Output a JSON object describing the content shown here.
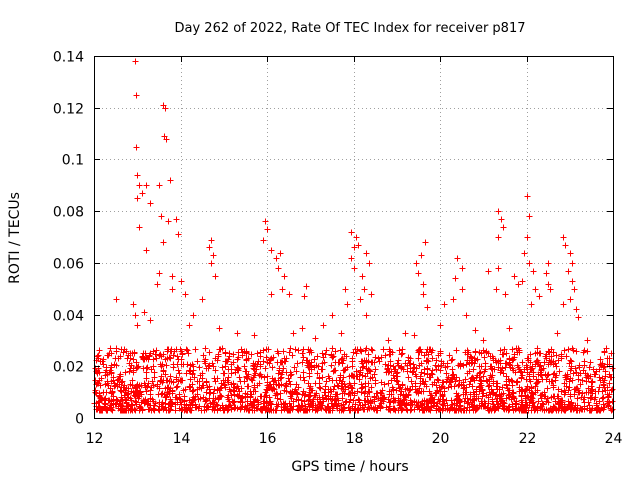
{
  "chart_data": {
    "type": "scatter",
    "title": "Day 262 of 2022, Rate Of TEC Index for receiver p817",
    "xlabel": "GPS time / hours",
    "ylabel": "ROTI / TECUs",
    "xlim": [
      12,
      24
    ],
    "ylim": [
      0,
      0.14
    ],
    "xticks": [
      12,
      14,
      16,
      18,
      20,
      22,
      24
    ],
    "yticks": [
      0,
      0.02,
      0.04,
      0.06,
      0.08,
      0.1,
      0.12,
      0.14
    ],
    "xtick_labels": [
      "12",
      "14",
      "16",
      "18",
      "20",
      "22",
      "24"
    ],
    "ytick_labels": [
      "0",
      "0.02",
      "0.04",
      "0.06",
      "0.08",
      "0.1",
      "0.12",
      "0.14"
    ],
    "grid": true,
    "marker": "+",
    "color": "#ff0000",
    "series": [
      {
        "name": "ROTI",
        "points": [
          [
            12.95,
            0.138
          ],
          [
            12.98,
            0.125
          ],
          [
            12.97,
            0.105
          ],
          [
            13.6,
            0.121
          ],
          [
            13.65,
            0.12
          ],
          [
            13.62,
            0.109
          ],
          [
            13.66,
            0.108
          ],
          [
            13.0,
            0.094
          ],
          [
            13.05,
            0.09
          ],
          [
            13.2,
            0.09
          ],
          [
            13.5,
            0.09
          ],
          [
            13.75,
            0.092
          ],
          [
            13.1,
            0.087
          ],
          [
            13.0,
            0.085
          ],
          [
            13.3,
            0.083
          ],
          [
            13.55,
            0.078
          ],
          [
            13.7,
            0.076
          ],
          [
            13.9,
            0.077
          ],
          [
            13.05,
            0.074
          ],
          [
            13.95,
            0.071
          ],
          [
            13.6,
            0.068
          ],
          [
            13.2,
            0.065
          ],
          [
            14.7,
            0.069
          ],
          [
            14.65,
            0.066
          ],
          [
            14.75,
            0.063
          ],
          [
            14.7,
            0.06
          ],
          [
            14.8,
            0.055
          ],
          [
            14.5,
            0.046
          ],
          [
            13.5,
            0.056
          ],
          [
            13.45,
            0.052
          ],
          [
            13.8,
            0.055
          ],
          [
            13.8,
            0.05
          ],
          [
            14.0,
            0.053
          ],
          [
            14.1,
            0.048
          ],
          [
            12.5,
            0.046
          ],
          [
            12.9,
            0.044
          ],
          [
            12.95,
            0.04
          ],
          [
            13.0,
            0.036
          ],
          [
            13.15,
            0.041
          ],
          [
            13.3,
            0.038
          ],
          [
            15.95,
            0.076
          ],
          [
            16.0,
            0.073
          ],
          [
            15.9,
            0.069
          ],
          [
            16.1,
            0.065
          ],
          [
            16.2,
            0.062
          ],
          [
            16.3,
            0.064
          ],
          [
            16.25,
            0.058
          ],
          [
            16.4,
            0.055
          ],
          [
            16.35,
            0.05
          ],
          [
            16.5,
            0.048
          ],
          [
            16.1,
            0.048
          ],
          [
            16.9,
            0.051
          ],
          [
            16.85,
            0.047
          ],
          [
            17.5,
            0.04
          ],
          [
            17.3,
            0.036
          ],
          [
            17.95,
            0.072
          ],
          [
            18.05,
            0.07
          ],
          [
            18.0,
            0.066
          ],
          [
            18.1,
            0.067
          ],
          [
            17.95,
            0.062
          ],
          [
            18.0,
            0.058
          ],
          [
            18.3,
            0.064
          ],
          [
            18.35,
            0.06
          ],
          [
            18.2,
            0.055
          ],
          [
            18.25,
            0.05
          ],
          [
            18.15,
            0.046
          ],
          [
            18.4,
            0.048
          ],
          [
            17.8,
            0.05
          ],
          [
            17.85,
            0.044
          ],
          [
            18.3,
            0.04
          ],
          [
            19.65,
            0.068
          ],
          [
            19.55,
            0.063
          ],
          [
            19.45,
            0.06
          ],
          [
            19.5,
            0.056
          ],
          [
            19.6,
            0.052
          ],
          [
            19.6,
            0.048
          ],
          [
            19.7,
            0.043
          ],
          [
            20.4,
            0.062
          ],
          [
            20.5,
            0.058
          ],
          [
            20.35,
            0.054
          ],
          [
            20.5,
            0.05
          ],
          [
            20.3,
            0.046
          ],
          [
            20.1,
            0.044
          ],
          [
            20.6,
            0.04
          ],
          [
            20.0,
            0.036
          ],
          [
            21.35,
            0.08
          ],
          [
            21.4,
            0.077
          ],
          [
            21.45,
            0.074
          ],
          [
            21.35,
            0.07
          ],
          [
            21.1,
            0.057
          ],
          [
            21.35,
            0.058
          ],
          [
            21.3,
            0.05
          ],
          [
            21.5,
            0.048
          ],
          [
            21.7,
            0.055
          ],
          [
            21.8,
            0.052
          ],
          [
            22.0,
            0.086
          ],
          [
            22.05,
            0.078
          ],
          [
            22.0,
            0.07
          ],
          [
            21.95,
            0.064
          ],
          [
            22.05,
            0.06
          ],
          [
            22.15,
            0.057
          ],
          [
            21.9,
            0.053
          ],
          [
            22.2,
            0.05
          ],
          [
            22.3,
            0.047
          ],
          [
            22.1,
            0.044
          ],
          [
            22.5,
            0.06
          ],
          [
            22.45,
            0.056
          ],
          [
            22.5,
            0.052
          ],
          [
            22.55,
            0.05
          ],
          [
            22.85,
            0.07
          ],
          [
            22.9,
            0.067
          ],
          [
            23.0,
            0.064
          ],
          [
            23.05,
            0.06
          ],
          [
            22.95,
            0.057
          ],
          [
            23.05,
            0.053
          ],
          [
            23.1,
            0.05
          ],
          [
            23.0,
            0.046
          ],
          [
            22.85,
            0.044
          ],
          [
            23.15,
            0.042
          ],
          [
            23.2,
            0.039
          ],
          [
            14.3,
            0.04
          ],
          [
            14.2,
            0.036
          ],
          [
            14.9,
            0.035
          ],
          [
            15.3,
            0.033
          ],
          [
            15.7,
            0.032
          ],
          [
            16.6,
            0.033
          ],
          [
            16.8,
            0.035
          ],
          [
            17.1,
            0.031
          ],
          [
            17.7,
            0.033
          ],
          [
            18.8,
            0.03
          ],
          [
            19.2,
            0.033
          ],
          [
            19.4,
            0.032
          ],
          [
            20.8,
            0.034
          ],
          [
            21.0,
            0.03
          ],
          [
            21.6,
            0.035
          ],
          [
            22.7,
            0.033
          ],
          [
            23.4,
            0.03
          ],
          [
            23.8,
            0.026
          ],
          [
            23.95,
            0.025
          ],
          [
            23.9,
            0.021
          ]
        ]
      }
    ]
  }
}
